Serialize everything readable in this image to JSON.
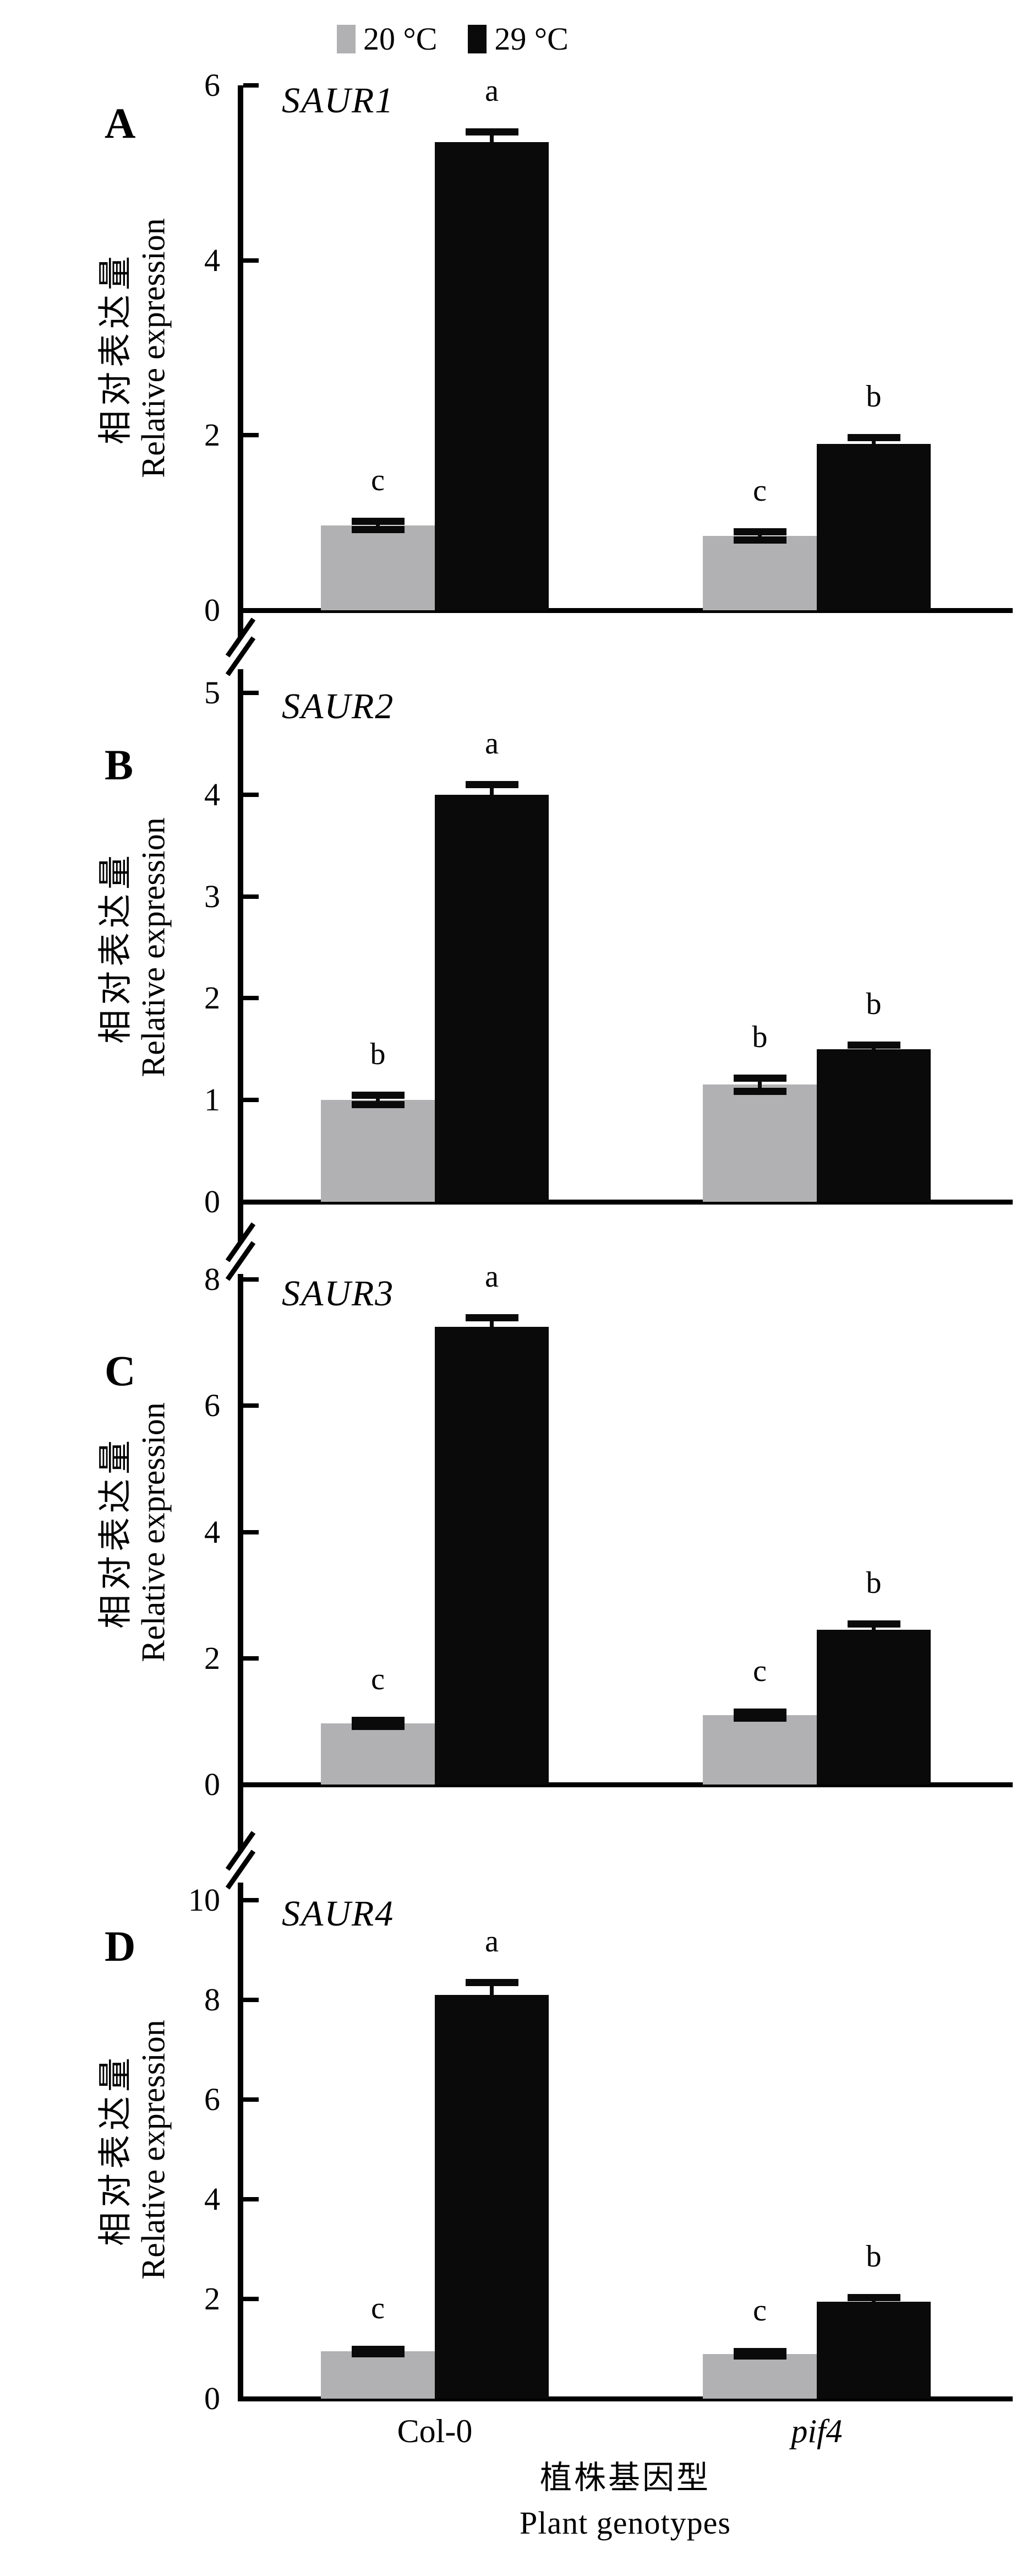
{
  "legend": {
    "items": [
      {
        "label": "20 °C",
        "color": "#b1b1b3"
      },
      {
        "label": "29 °C",
        "color": "#0a0a0a"
      }
    ]
  },
  "y_axis": {
    "label_zh": "相对表达量",
    "label_en": "Relative expression"
  },
  "x_axis": {
    "categories": [
      "Col-0",
      "pif4"
    ],
    "title_zh": "植株基因型",
    "title_en": "Plant genotypes"
  },
  "bar_colors": {
    "series_20c": "#b1b1b3",
    "series_29c": "#0a0a0a"
  },
  "chart_data": [
    {
      "type": "bar",
      "panel_label": "A",
      "title": "SAUR1",
      "categories": [
        "Col-0",
        "pif4"
      ],
      "series": [
        {
          "name": "20 °C",
          "values": [
            0.97,
            0.85
          ]
        },
        {
          "name": "29 °C",
          "values": [
            5.35,
            1.9
          ]
        }
      ],
      "errors": [
        [
          0.05,
          0.05
        ],
        [
          0.12,
          0.08
        ]
      ],
      "sig_letters": [
        [
          "c",
          "c"
        ],
        [
          "a",
          "b"
        ]
      ],
      "ylabel": "相对表达量 Relative expression",
      "ylim": [
        0,
        6
      ],
      "yticks": [
        0,
        2,
        4,
        6
      ],
      "grid": false,
      "legend_position": "top-center",
      "axis_break_above": false
    },
    {
      "type": "bar",
      "panel_label": "B",
      "title": "SAUR2",
      "categories": [
        "Col-0",
        "pif4"
      ],
      "series": [
        {
          "name": "20 °C",
          "values": [
            1.0,
            1.15
          ]
        },
        {
          "name": "29 °C",
          "values": [
            4.0,
            1.5
          ]
        }
      ],
      "errors": [
        [
          0.05,
          0.07
        ],
        [
          0.1,
          0.04
        ]
      ],
      "sig_letters": [
        [
          "b",
          "b"
        ],
        [
          "a",
          "b"
        ]
      ],
      "ylabel": "相对表达量 Relative expression",
      "ylim": [
        0,
        5
      ],
      "yticks": [
        0,
        1,
        2,
        3,
        4,
        5
      ],
      "grid": false,
      "legend_position": "none",
      "axis_break_above": true
    },
    {
      "type": "bar",
      "panel_label": "C",
      "title": "SAUR3",
      "categories": [
        "Col-0",
        "pif4"
      ],
      "series": [
        {
          "name": "20 °C",
          "values": [
            0.97,
            1.1
          ]
        },
        {
          "name": "29 °C",
          "values": [
            7.25,
            2.45
          ]
        }
      ],
      "errors": [
        [
          0.05,
          0.05
        ],
        [
          0.15,
          0.1
        ]
      ],
      "sig_letters": [
        [
          "c",
          "c"
        ],
        [
          "a",
          "b"
        ]
      ],
      "ylabel": "相对表达量 Relative expression",
      "ylim": [
        0,
        8
      ],
      "yticks": [
        0,
        2,
        4,
        6,
        8
      ],
      "grid": false,
      "legend_position": "none",
      "axis_break_above": true
    },
    {
      "type": "bar",
      "panel_label": "D",
      "title": "SAUR4",
      "categories": [
        "Col-0",
        "pif4"
      ],
      "series": [
        {
          "name": "20 °C",
          "values": [
            0.95,
            0.9
          ]
        },
        {
          "name": "29 °C",
          "values": [
            8.1,
            1.95
          ]
        }
      ],
      "errors": [
        [
          0.05,
          0.05
        ],
        [
          0.25,
          0.08
        ]
      ],
      "sig_letters": [
        [
          "c",
          "c"
        ],
        [
          "a",
          "b"
        ]
      ],
      "ylabel": "相对表达量 Relative expression",
      "ylim": [
        0,
        10
      ],
      "yticks": [
        0,
        2,
        4,
        6,
        8,
        10
      ],
      "grid": false,
      "legend_position": "none",
      "axis_break_above": true
    }
  ]
}
